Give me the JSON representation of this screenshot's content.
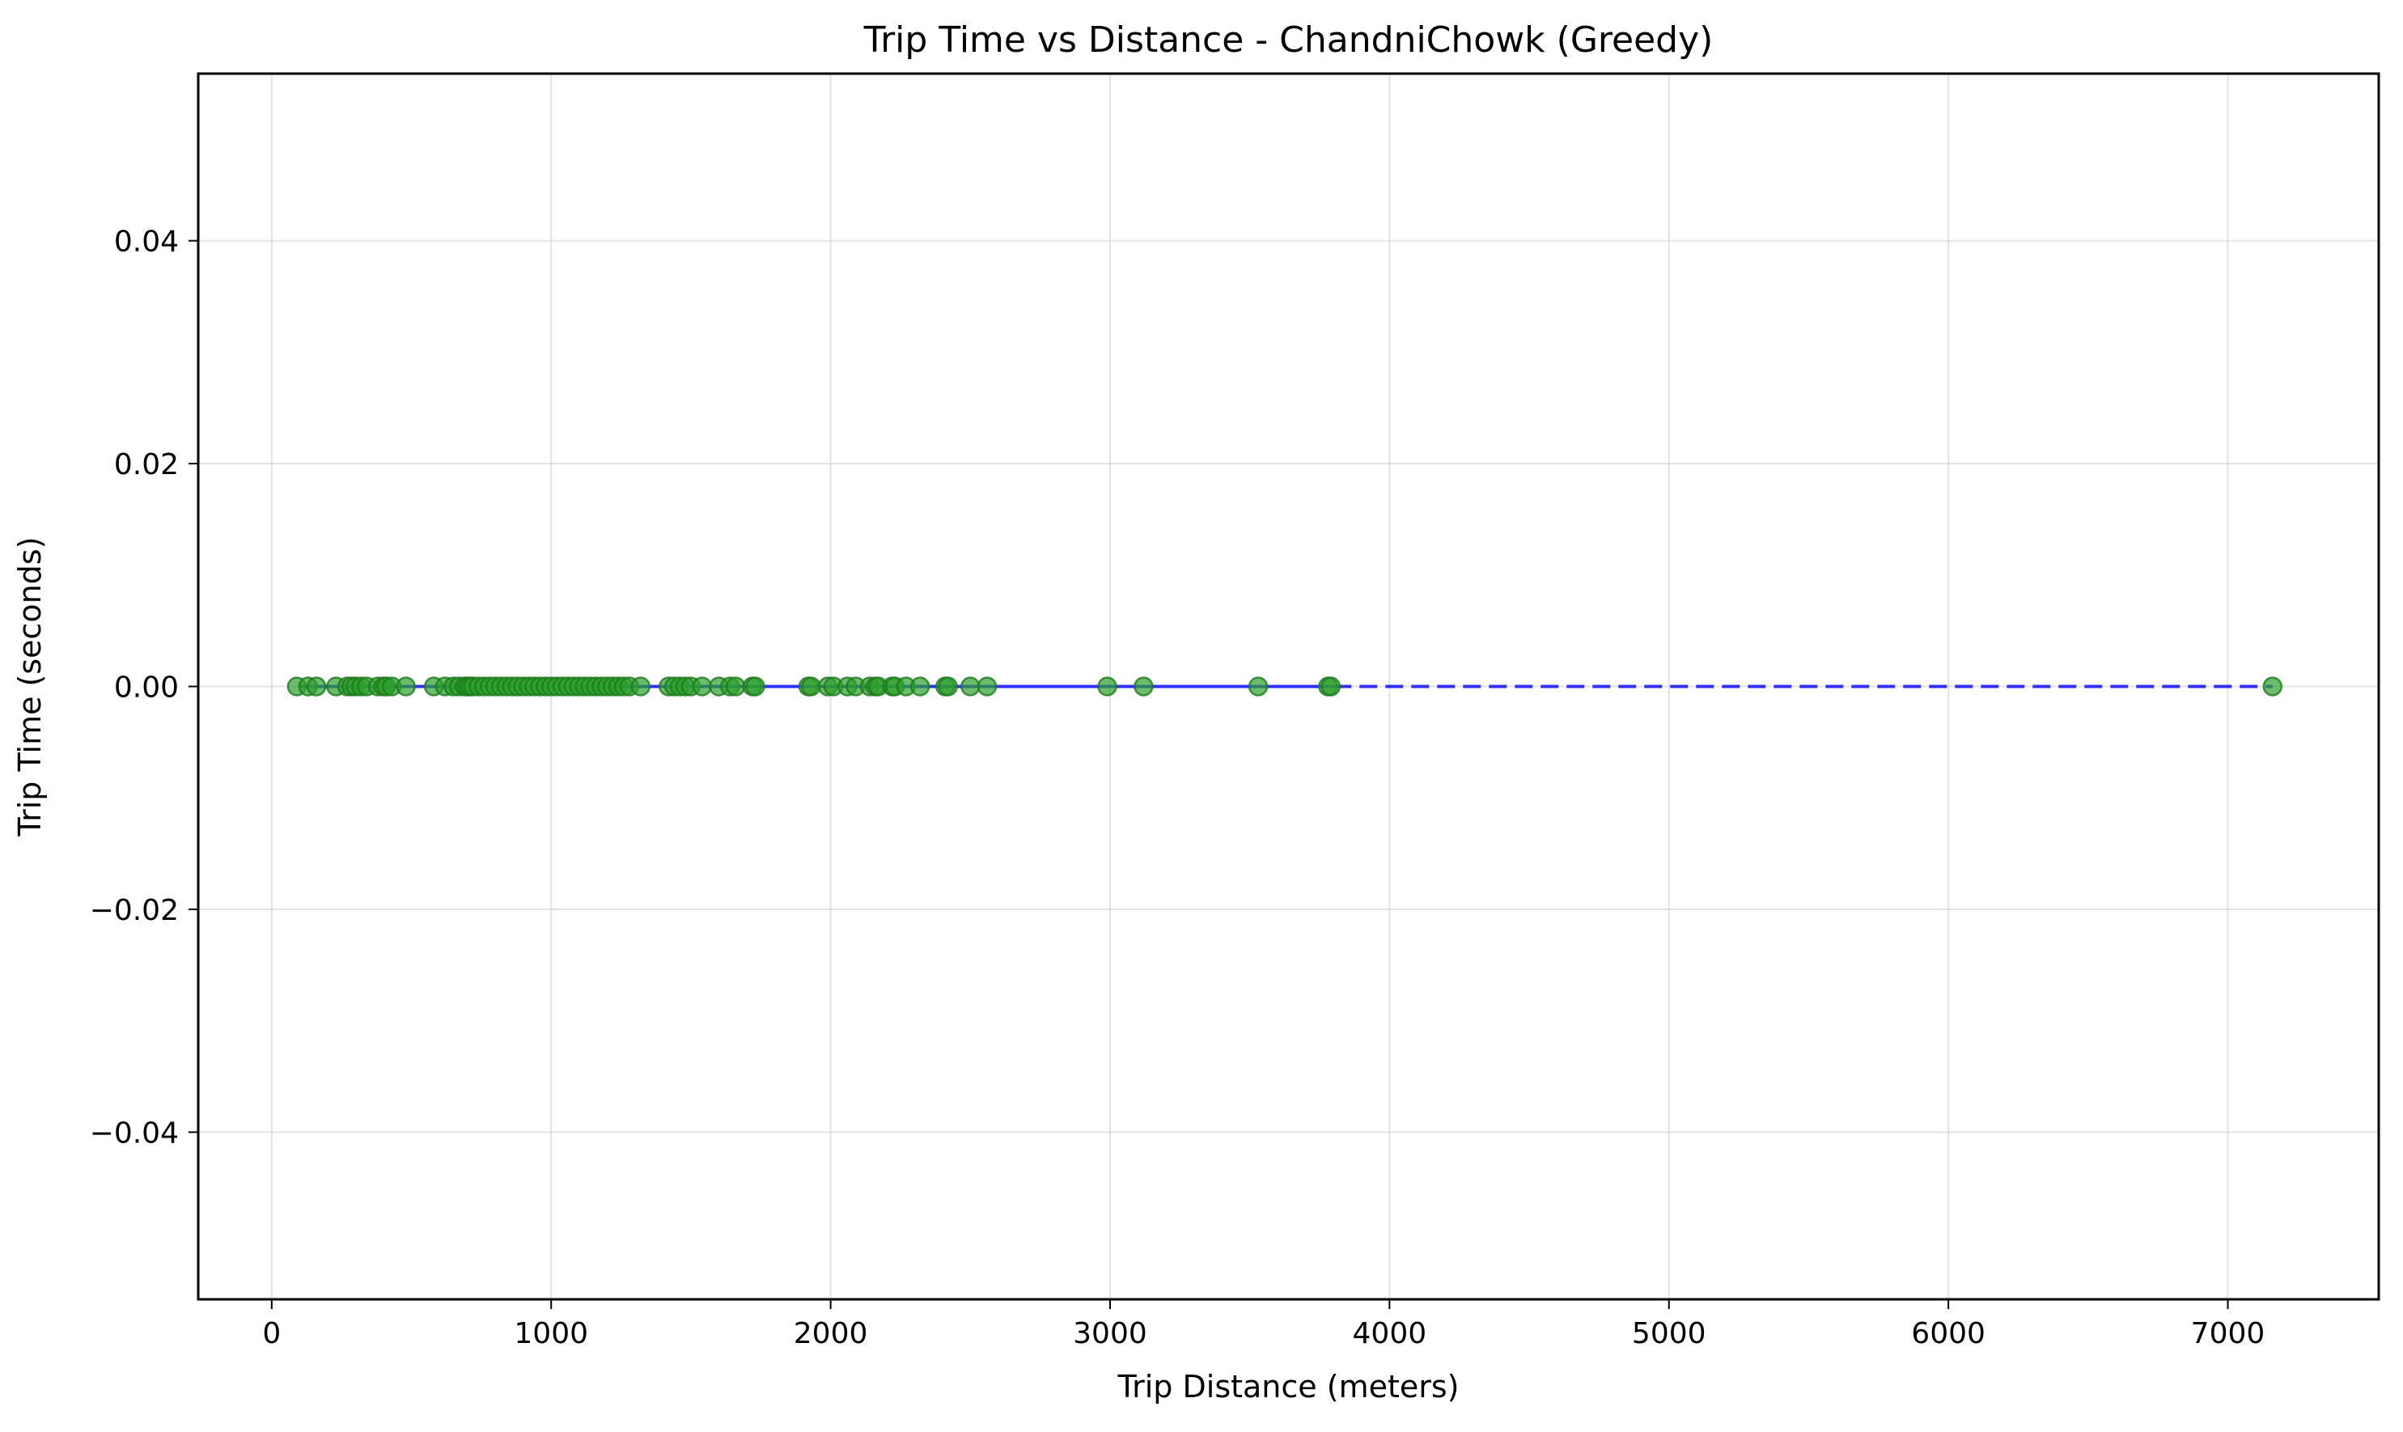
{
  "chart_data": {
    "type": "scatter",
    "title": "Trip Time vs Distance - ChandniChowk (Greedy)",
    "xlabel": "Trip Distance (meters)",
    "ylabel": "Trip Time (seconds)",
    "xlim": [
      -263,
      7540
    ],
    "ylim": [
      -0.055,
      0.055
    ],
    "xticks": [
      0,
      1000,
      2000,
      3000,
      4000,
      5000,
      6000,
      7000
    ],
    "xtick_labels": [
      "0",
      "1000",
      "2000",
      "3000",
      "4000",
      "5000",
      "6000",
      "7000"
    ],
    "yticks": [
      0.04,
      0.02,
      0.0,
      -0.02,
      -0.04
    ],
    "ytick_labels": [
      "0.04",
      "0.02",
      "0.00",
      "−0.02",
      "−0.04"
    ],
    "grid": true,
    "series": [
      {
        "kind": "scatter",
        "color": "#2ca02c",
        "edge_color": "#1a7a1a",
        "alpha": 0.7,
        "x": [
          90,
          130,
          160,
          230,
          270,
          285,
          300,
          320,
          340,
          380,
          400,
          410,
          430,
          480,
          580,
          620,
          650,
          670,
          690,
          700,
          710,
          720,
          740,
          760,
          780,
          800,
          820,
          840,
          860,
          880,
          900,
          920,
          940,
          960,
          980,
          1000,
          1020,
          1040,
          1060,
          1080,
          1100,
          1120,
          1140,
          1160,
          1180,
          1200,
          1220,
          1240,
          1260,
          1280,
          1320,
          1420,
          1440,
          1460,
          1480,
          1500,
          1540,
          1600,
          1640,
          1660,
          1720,
          1730,
          1920,
          1930,
          1990,
          2010,
          2060,
          2090,
          2140,
          2160,
          2170,
          2220,
          2230,
          2270,
          2320,
          2410,
          2420,
          2500,
          2560,
          2990,
          3120,
          3530,
          3780,
          3790,
          7160
        ],
        "y": [
          0,
          0,
          0,
          0,
          0,
          0,
          0,
          0,
          0,
          0,
          0,
          0,
          0,
          0,
          0,
          0,
          0,
          0,
          0,
          0,
          0,
          0,
          0,
          0,
          0,
          0,
          0,
          0,
          0,
          0,
          0,
          0,
          0,
          0,
          0,
          0,
          0,
          0,
          0,
          0,
          0,
          0,
          0,
          0,
          0,
          0,
          0,
          0,
          0,
          0,
          0,
          0,
          0,
          0,
          0,
          0,
          0,
          0,
          0,
          0,
          0,
          0,
          0,
          0,
          0,
          0,
          0,
          0,
          0,
          0,
          0,
          0,
          0,
          0,
          0,
          0,
          0,
          0,
          0,
          0,
          0,
          0,
          0,
          0,
          0
        ]
      },
      {
        "kind": "line",
        "color": "#0000ff",
        "style": "solid",
        "x": [
          100,
          3800
        ],
        "y": [
          0,
          0
        ]
      },
      {
        "kind": "line",
        "color": "#0000ff",
        "style": "dashed",
        "x": [
          3800,
          7160
        ],
        "y": [
          0,
          0
        ]
      }
    ]
  }
}
